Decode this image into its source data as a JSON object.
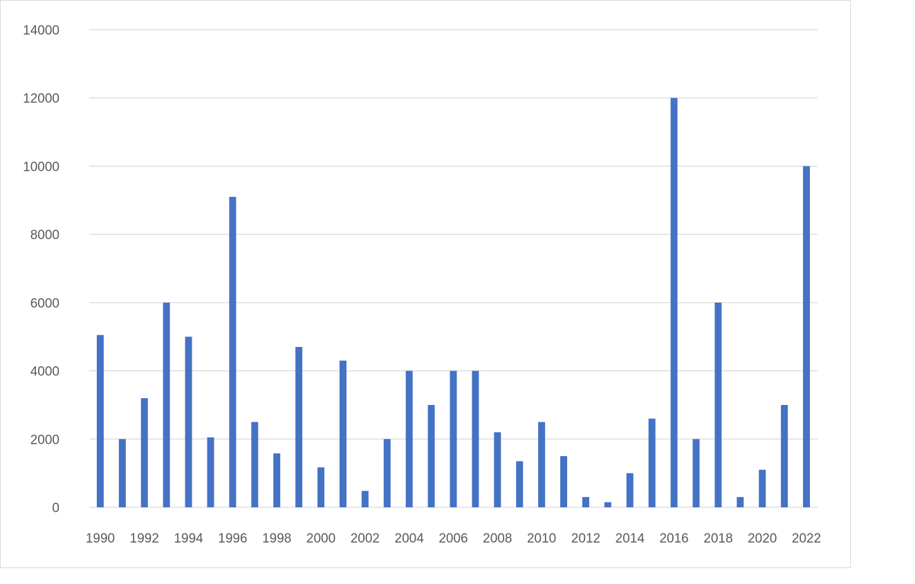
{
  "chart_data": {
    "type": "bar",
    "title": "",
    "xlabel": "",
    "ylabel": "",
    "categories": [
      "1990",
      "1991",
      "1992",
      "1993",
      "1994",
      "1995",
      "1996",
      "1997",
      "1998",
      "1999",
      "2000",
      "2001",
      "2002",
      "2003",
      "2004",
      "2005",
      "2006",
      "2007",
      "2008",
      "2009",
      "2010",
      "2011",
      "2012",
      "2013",
      "2014",
      "2015",
      "2016",
      "2017",
      "2018",
      "2019",
      "2020",
      "2021",
      "2022"
    ],
    "x_tick_labels": [
      "1990",
      "1992",
      "1994",
      "1996",
      "1998",
      "2000",
      "2002",
      "2004",
      "2006",
      "2008",
      "2010",
      "2012",
      "2014",
      "2016",
      "2018",
      "2020",
      "2022"
    ],
    "values": [
      5050,
      2000,
      3200,
      6000,
      5000,
      2050,
      9100,
      2500,
      1580,
      4700,
      1170,
      4300,
      480,
      2000,
      4000,
      3000,
      4000,
      4000,
      2200,
      1350,
      2500,
      1500,
      300,
      150,
      1000,
      2600,
      12000,
      2000,
      6000,
      300,
      1100,
      3000,
      10000
    ],
    "ylim": [
      0,
      14000
    ],
    "y_ticks": [
      0,
      2000,
      4000,
      6000,
      8000,
      10000,
      12000,
      14000
    ],
    "grid": true,
    "legend": "none",
    "bar_color": "#4472c4",
    "grid_color": "#d9d9d9",
    "text_color": "#595959"
  }
}
